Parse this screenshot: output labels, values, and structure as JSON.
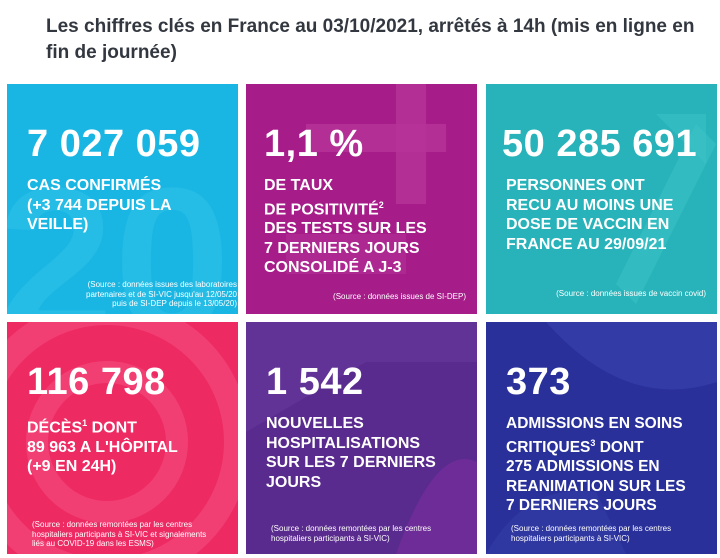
{
  "headline": "Les chiffres clés en France au 03/10/2021, arrêtés à 14h (mis en ligne en fin de journée)",
  "colors": {
    "cyan": "#1ab6e3",
    "magenta": "#a61c89",
    "teal": "#27b3b9",
    "pink": "#ee2a63",
    "purple": "#5a2b8e",
    "navy": "#29309a"
  },
  "tiles": [
    {
      "number": "7 027 059",
      "lines": [
        "CAS CONFIRMÉS",
        "(+3 744 DEPUIS LA",
        "VEILLE)"
      ],
      "source": [
        "(Source : données issues des laboratoires",
        "partenaires et de SI-VIC jusqu'au 12/05/20",
        "puis de SI-DEP depuis le 13/05/20)"
      ]
    },
    {
      "number": "1,1 %",
      "lines": [
        "DE TAUX",
        "DE POSITIVITÉ",
        "DES TESTS SUR LES",
        "7 DERNIERS JOURS",
        "CONSOLIDÉ A J-3"
      ],
      "sup": "2",
      "source": [
        "(Source : données issues de SI-DEP)"
      ]
    },
    {
      "number": "50 285 691",
      "lines": [
        "PERSONNES ONT",
        "RECU AU MOINS UNE",
        "DOSE DE VACCIN EN",
        "FRANCE AU 29/09/21"
      ],
      "source": [
        "(Source : données issues de vaccin covid)"
      ]
    },
    {
      "number": "116 798",
      "lines": [
        "DÉCÈS",
        "89 963 A L'HÔPITAL",
        "(+9 EN 24H)"
      ],
      "sup": "1",
      "line1_suffix": " DONT",
      "source": [
        "(Source : données remontées par les centres",
        "hospitaliers participants à SI-VIC et signalements",
        "liés au COVID-19 dans les ESMS)"
      ]
    },
    {
      "number": "1 542",
      "lines": [
        "NOUVELLES",
        "HOSPITALISATIONS",
        "SUR LES 7 DERNIERS",
        "JOURS"
      ],
      "source": [
        "(Source : données remontées par les centres",
        "hospitaliers participants à SI-VIC)"
      ]
    },
    {
      "number": "373",
      "lines": [
        "ADMISSIONS EN SOINS",
        "CRITIQUES",
        "275 ADMISSIONS EN",
        "REANIMATION SUR LES",
        "7 DERNIERS JOURS"
      ],
      "sup": "3",
      "line2_suffix": " DONT",
      "source": [
        "(Source : données remontées par les centres",
        "hospitaliers participants à SI-VIC)"
      ]
    }
  ]
}
